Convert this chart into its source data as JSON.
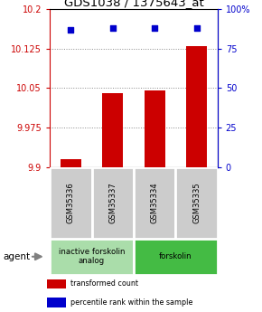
{
  "title": "GDS1038 / 1375643_at",
  "categories": [
    "GSM35336",
    "GSM35337",
    "GSM35334",
    "GSM35335"
  ],
  "bar_values": [
    9.915,
    10.04,
    10.045,
    10.13
  ],
  "bar_color": "#cc0000",
  "percentile_values": [
    87,
    88,
    88,
    88
  ],
  "percentile_color": "#0000cc",
  "ylim_left": [
    9.9,
    10.2
  ],
  "yticks_left": [
    9.9,
    9.975,
    10.05,
    10.125,
    10.2
  ],
  "ytick_labels_left": [
    "9.9",
    "9.975",
    "10.05",
    "10.125",
    "10.2"
  ],
  "ylim_right": [
    0,
    100
  ],
  "yticks_right": [
    0,
    25,
    50,
    75,
    100
  ],
  "ytick_labels_right": [
    "0",
    "25",
    "50",
    "75",
    "100%"
  ],
  "agent_groups": [
    {
      "label": "inactive forskolin\nanalog",
      "span": [
        0,
        2
      ],
      "color": "#aaddaa"
    },
    {
      "label": "forskolin",
      "span": [
        2,
        4
      ],
      "color": "#44bb44"
    }
  ],
  "agent_label": "agent",
  "legend_items": [
    {
      "color": "#cc0000",
      "label": "transformed count"
    },
    {
      "color": "#0000cc",
      "label": "percentile rank within the sample"
    }
  ],
  "background_color": "#ffffff",
  "plot_bg_color": "#ffffff",
  "grid_color": "#888888",
  "sample_box_color": "#cccccc",
  "title_fontsize": 9.5,
  "tick_fontsize": 7,
  "bar_width": 0.5
}
